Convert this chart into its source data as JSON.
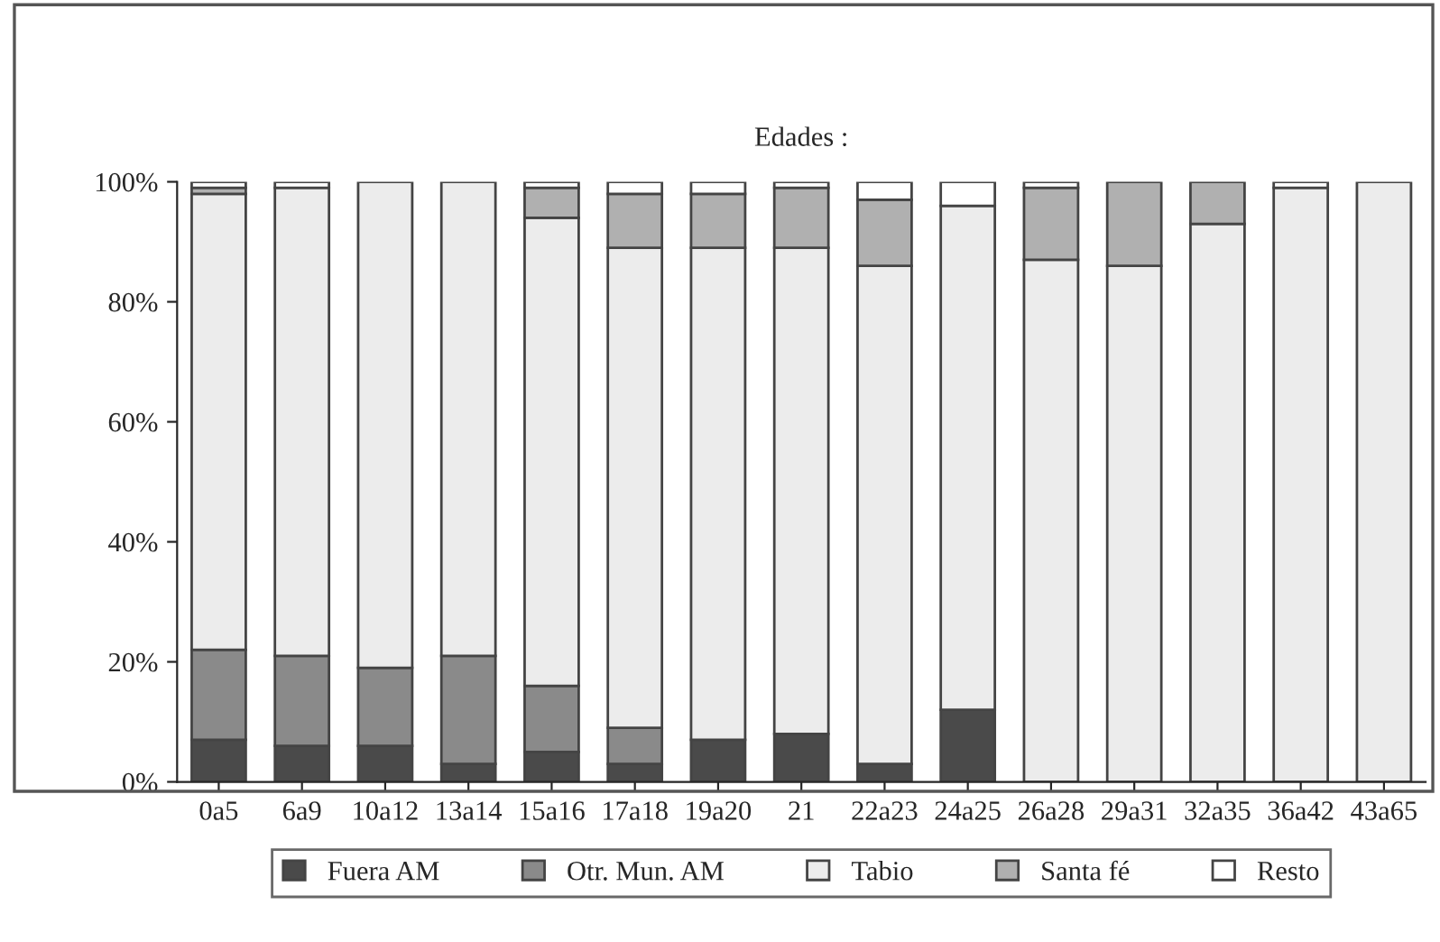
{
  "chart_data": {
    "type": "bar",
    "title": "Edades :",
    "stacked": true,
    "legend": "bottom",
    "grid": false,
    "categories": [
      "0a5",
      "6a9",
      "10a12",
      "13a14",
      "15a16",
      "17a18",
      "19a20",
      "21",
      "22a23",
      "24a25",
      "26a28",
      "29a31",
      "32a35",
      "36a42",
      "43a65"
    ],
    "ylim": [
      0,
      100
    ],
    "yticks": [
      {
        "value": 0,
        "label": "0%"
      },
      {
        "value": 20,
        "label": "20%"
      },
      {
        "value": 40,
        "label": "40%"
      },
      {
        "value": 60,
        "label": "60%"
      },
      {
        "value": 80,
        "label": "80%"
      },
      {
        "value": 100,
        "label": "100%"
      }
    ],
    "series": [
      {
        "name": "Fuera AM",
        "color": "#4a4a4a",
        "values": [
          7,
          6,
          6,
          3,
          5,
          3,
          7,
          8,
          3,
          12,
          0,
          0,
          0,
          0,
          0
        ]
      },
      {
        "name": "Otr. Mun. AM",
        "color": "#8a8a8a",
        "values": [
          15,
          15,
          13,
          18,
          11,
          6,
          0,
          0,
          0,
          0,
          0,
          0,
          0,
          0,
          0
        ]
      },
      {
        "name": "Tabio",
        "color": "#ececec",
        "values": [
          76,
          78,
          81,
          79,
          78,
          80,
          82,
          81,
          83,
          84,
          87,
          86,
          93,
          99,
          100
        ]
      },
      {
        "name": "Santa fé",
        "color": "#b0b0b0",
        "values": [
          1,
          0,
          0,
          0,
          5,
          9,
          9,
          10,
          11,
          0,
          12,
          14,
          7,
          0,
          0
        ]
      },
      {
        "name": "Resto",
        "color": "#ffffff",
        "values": [
          1,
          1,
          0,
          0,
          1,
          2,
          2,
          1,
          3,
          4,
          1,
          0,
          0,
          1,
          0
        ]
      }
    ]
  }
}
